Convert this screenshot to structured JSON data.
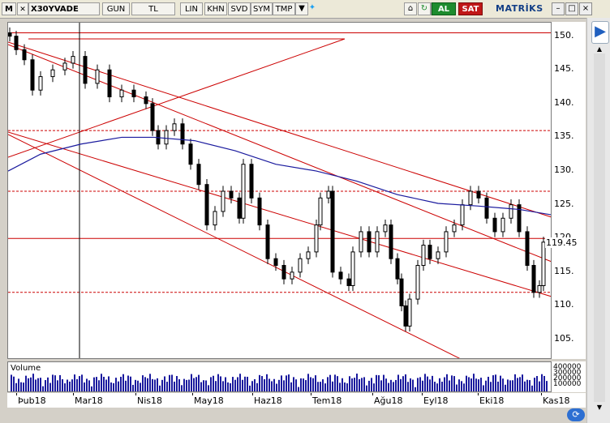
{
  "toolbar": {
    "app_letter": "M",
    "symbol": "X30YVADE",
    "buttons": [
      "GUN",
      "TL",
      "LIN",
      "KHN",
      "SVD",
      "SYM",
      "TMP"
    ],
    "al_label": "AL",
    "sat_label": "SAT",
    "brand": "MATRİKS",
    "min_label": "–",
    "max_label": "□",
    "close_label": "×"
  },
  "colors": {
    "candle": "#000000",
    "trendline": "#cc0000",
    "moving_average": "#1a1a9e",
    "volume": "#1a1a9e"
  },
  "chart_data": {
    "type": "candlestick",
    "y_ticks": [
      "150.",
      "145.",
      "140.",
      "135.",
      "130.",
      "125.",
      "120.",
      "115.",
      "110.",
      "105."
    ],
    "y_tick_values": [
      150,
      145,
      140,
      135,
      130,
      125,
      120,
      115,
      110,
      105
    ],
    "ylim": [
      102,
      152
    ],
    "last_price": "119.45",
    "x_ticks": [
      "Þub18",
      "Mar18",
      "Nis18",
      "May18",
      "Haz18",
      "Tem18",
      "Ağu18",
      "Eyl18",
      "Eki18",
      "Kas18"
    ],
    "horizontal_levels": [
      150.5,
      136,
      127,
      120,
      112
    ],
    "volume_label": "Volume"
  },
  "scroll": {
    "up": "▲",
    "down": "▼"
  }
}
